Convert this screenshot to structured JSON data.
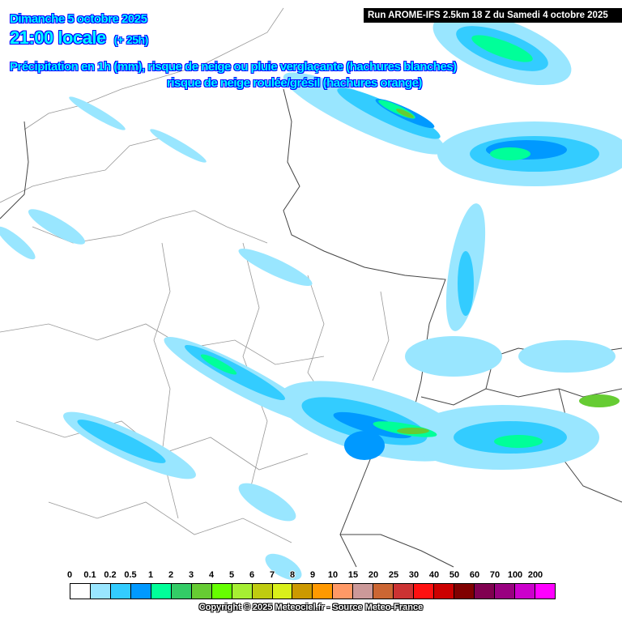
{
  "header": {
    "date": "Dimanche 5 octobre 2025",
    "time": "21:00 locale",
    "lead": "(+ 25h)",
    "line1": "Précipitation en 1h (mm), risque de neige ou pluie verglaçante (hachures blanches)",
    "line2": "risque de neige roulée/grésil (hachures orange)",
    "run": "Run AROME-IFS 2.5km 18 Z du Samedi 4 octobre 2025"
  },
  "legend": {
    "labels": [
      "0",
      "0.1",
      "0.2",
      "0.5",
      "1",
      "2",
      "3",
      "4",
      "5",
      "6",
      "7",
      "8",
      "9",
      "10",
      "15",
      "20",
      "25",
      "30",
      "40",
      "50",
      "60",
      "70",
      "100",
      "200"
    ],
    "colors": [
      "#ffffff",
      "#99e6ff",
      "#33ccff",
      "#0099ff",
      "#00ff99",
      "#33cc66",
      "#66cc33",
      "#66ff00",
      "#a6ef33",
      "#bfcc10",
      "#d9f01a",
      "#cc9900",
      "#ff9900",
      "#ff9966",
      "#cc9999",
      "#cc6633",
      "#cc3333",
      "#ff1111",
      "#cc0000",
      "#800000",
      "#800050",
      "#990080",
      "#cc00cc",
      "#ff00ff"
    ]
  },
  "copyright": "Copyright © 2025 Meteociel.fr - Source Meteo-France"
}
